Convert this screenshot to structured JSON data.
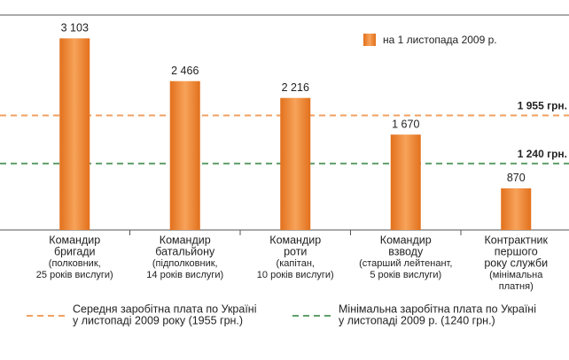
{
  "chart_data": {
    "type": "bar",
    "legend_label": "на 1 листопада 2009 р.",
    "color": "#ee8a33",
    "categories": [
      [
        "Командир",
        "бригади",
        "(полковник,",
        "25 років вислуги)"
      ],
      [
        "Командир",
        "батальйону",
        "(підполковник,",
        "14 років вислуги)"
      ],
      [
        "Командир",
        "роти",
        "(капітан,",
        "10 років вислуги)"
      ],
      [
        "Командир",
        "взводу",
        "(старший лейтенант,",
        "5 років вислуги)"
      ],
      [
        "Контрактник",
        "першого",
        "року служби",
        "(мінімальна",
        "платня)"
      ]
    ],
    "values": [
      3103,
      2466,
      2216,
      1670,
      870
    ],
    "value_labels": [
      "3 103",
      "2 466",
      "2 216",
      "1 670",
      "870"
    ],
    "ylim": [
      250,
      3450
    ],
    "reference_lines": [
      {
        "value": 1955,
        "label": "1 955 грн.",
        "color": "#f0a060",
        "label_color": "#e87722",
        "legend": [
          "Середня заробітна плата по Україні",
          "у листопаді 2009 року (1955 грн.)"
        ]
      },
      {
        "value": 1240,
        "label": "1 240 грн.",
        "color": "#5f9f6a",
        "label_color": "#2e8b3e",
        "legend": [
          "Мінімальна заробітна плата по Україні",
          "у листопаді 2009 р. (1240 грн.)"
        ]
      }
    ]
  }
}
